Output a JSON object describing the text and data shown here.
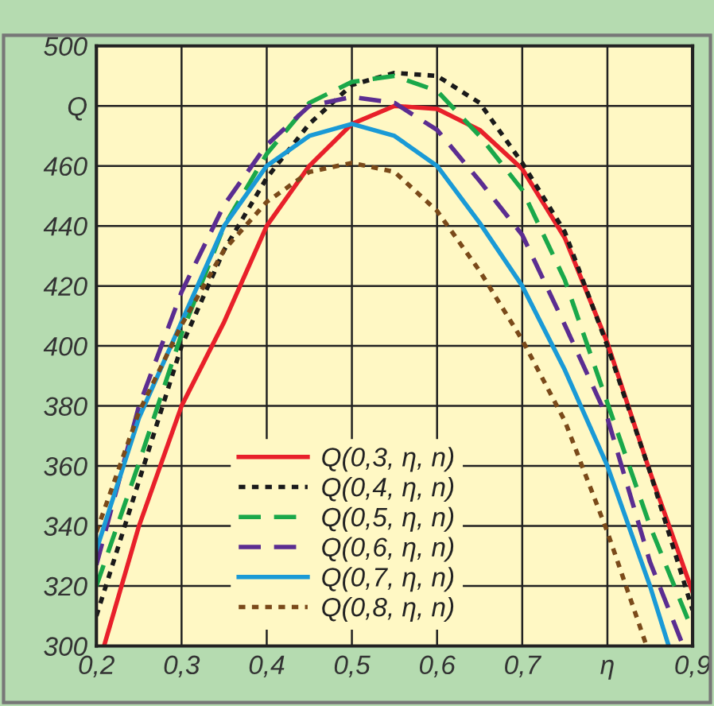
{
  "chart_data": {
    "type": "line",
    "ylabel": null,
    "xlim": [
      0.2,
      0.9
    ],
    "ylim": [
      300,
      500
    ],
    "xticks": [
      {
        "value": 0.2,
        "label": "0,2"
      },
      {
        "value": 0.3,
        "label": "0,3"
      },
      {
        "value": 0.4,
        "label": "0,4"
      },
      {
        "value": 0.5,
        "label": "0,5"
      },
      {
        "value": 0.6,
        "label": "0,6"
      },
      {
        "value": 0.7,
        "label": "0,7"
      },
      {
        "value": 0.8,
        "label": "η"
      },
      {
        "value": 0.9,
        "label": "0,9"
      }
    ],
    "yticks": [
      300,
      320,
      340,
      360,
      380,
      400,
      420,
      440,
      460,
      {
        "value": 480,
        "label": "Q"
      },
      500
    ],
    "grid": true,
    "legend": "bottom",
    "series": [
      {
        "name": "Q(0,3, η, n)",
        "color": "#e8202a",
        "line_style": "solid",
        "x": [
          0.209,
          0.25,
          0.3,
          0.35,
          0.4,
          0.45,
          0.5,
          0.55,
          0.6,
          0.65,
          0.7,
          0.75,
          0.8,
          0.85,
          0.9
        ],
        "values": [
          300,
          340,
          380,
          408,
          440,
          460,
          474,
          480,
          479,
          472,
          459,
          436,
          401,
          358,
          318
        ]
      },
      {
        "name": "Q(0,4, η, n)",
        "color": "#1a1a1a",
        "line_style": "dotted",
        "x": [
          0.2,
          0.25,
          0.3,
          0.35,
          0.4,
          0.45,
          0.5,
          0.55,
          0.6,
          0.65,
          0.7,
          0.75,
          0.8,
          0.85,
          0.9
        ],
        "values": [
          310,
          355,
          400,
          432,
          456,
          474,
          487,
          491,
          490,
          481,
          461,
          438,
          400,
          358,
          312
        ]
      },
      {
        "name": "Q(0,5, η, n)",
        "color": "#1aa84a",
        "line_style": "dashed",
        "x": [
          0.2,
          0.25,
          0.3,
          0.35,
          0.4,
          0.45,
          0.5,
          0.55,
          0.6,
          0.65,
          0.7,
          0.75,
          0.8,
          0.85,
          0.9
        ],
        "values": [
          320,
          361,
          404,
          440,
          464,
          481,
          488,
          490,
          485,
          470,
          452,
          422,
          381,
          340,
          305
        ]
      },
      {
        "name": "Q(0,6, η, n)",
        "color": "#5b2d91",
        "line_style": "dashed",
        "x": [
          0.2,
          0.25,
          0.3,
          0.35,
          0.4,
          0.45,
          0.5,
          0.55,
          0.6,
          0.65,
          0.7,
          0.75,
          0.8,
          0.85,
          0.889
        ],
        "values": [
          327,
          380,
          418,
          447,
          467,
          480,
          483,
          481,
          472,
          455,
          437,
          407,
          376,
          328,
          300
        ]
      },
      {
        "name": "Q(0,7, η, n)",
        "color": "#1a9ad6",
        "line_style": "solid",
        "x": [
          0.2,
          0.25,
          0.3,
          0.35,
          0.4,
          0.45,
          0.5,
          0.55,
          0.6,
          0.65,
          0.7,
          0.75,
          0.8,
          0.85,
          0.872
        ],
        "values": [
          332,
          376,
          408,
          440,
          460,
          470,
          474,
          470,
          460,
          441,
          420,
          392,
          360,
          320,
          300
        ]
      },
      {
        "name": "Q(0,8, η, n)",
        "color": "#7a4a1a",
        "line_style": "dotted",
        "x": [
          0.2,
          0.25,
          0.3,
          0.35,
          0.4,
          0.45,
          0.5,
          0.55,
          0.6,
          0.65,
          0.7,
          0.75,
          0.8,
          0.846
        ],
        "values": [
          338,
          378,
          407,
          432,
          448,
          458,
          461,
          458,
          445,
          425,
          402,
          375,
          338,
          300
        ]
      }
    ]
  }
}
